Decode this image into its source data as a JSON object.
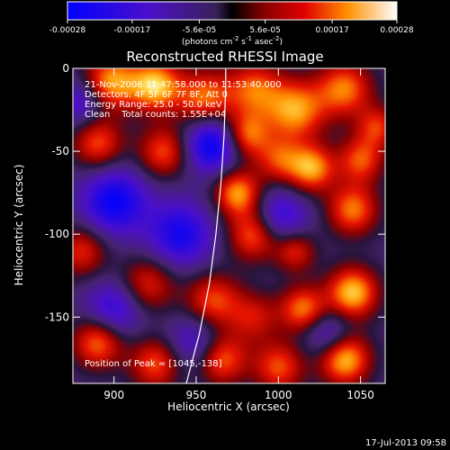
{
  "chart_data": {
    "type": "heatmap",
    "title": "Reconstructed RHESSI Image",
    "xlabel": "Heliocentric X (arcsec)",
    "ylabel": "Heliocentric Y (arcsec)",
    "xlim": [
      875,
      1065
    ],
    "ylim": [
      -190,
      0
    ],
    "x_ticks": [
      900,
      950,
      1000,
      1050
    ],
    "y_ticks": [
      0,
      -50,
      -100,
      -150
    ],
    "colorbar": {
      "ticks": [
        "-0.00028",
        "-0.00017",
        "-5.6e-05",
        "5.6e-05",
        "0.00017",
        "0.00028"
      ],
      "tick_values": [
        -0.00028,
        -0.00017,
        -5.6e-05,
        5.6e-05,
        0.00017,
        0.00028
      ],
      "range": [
        -0.00028,
        0.00028
      ],
      "unit_label_main": "(photons cm",
      "unit_sup1": "-2",
      "unit_label_mid": " s",
      "unit_sup2": "-1",
      "unit_label_end": " asec",
      "unit_sup3": "-2",
      "unit_label_close": ")"
    },
    "annotations": {
      "line1": "21-Nov-2006 11:47:58.000 to 11:53:40.000",
      "line2": "Detectors: 4F 5F 6F 7F 8F, Att 0",
      "line3": "Energy Range: 25.0 - 50.0 keV",
      "line4": "Clean    Total counts: 1.55E+04",
      "peak": "Position of Peak = [1045,-138]"
    },
    "limb_curve": [
      [
        944,
        -190
      ],
      [
        952,
        -160
      ],
      [
        958,
        -130
      ],
      [
        962,
        -100
      ],
      [
        965,
        -70
      ],
      [
        967,
        -40
      ],
      [
        968,
        -10
      ],
      [
        968,
        0
      ]
    ],
    "blobs": [
      [
        898,
        -8,
        0.9,
        12
      ],
      [
        925,
        -10,
        1.0,
        11
      ],
      [
        955,
        -18,
        0.8,
        12
      ],
      [
        985,
        -12,
        0.7,
        12
      ],
      [
        1010,
        -25,
        0.9,
        13
      ],
      [
        1040,
        -12,
        0.8,
        12
      ],
      [
        980,
        -40,
        0.8,
        10
      ],
      [
        1000,
        -55,
        0.6,
        10
      ],
      [
        1020,
        -60,
        0.9,
        10
      ],
      [
        1050,
        -55,
        0.7,
        10
      ],
      [
        890,
        -45,
        0.7,
        11
      ],
      [
        930,
        -50,
        0.7,
        11
      ],
      [
        975,
        -75,
        0.9,
        10
      ],
      [
        1045,
        -85,
        0.8,
        11
      ],
      [
        985,
        -100,
        0.8,
        11
      ],
      [
        1010,
        -110,
        0.6,
        9
      ],
      [
        900,
        -80,
        -0.8,
        14
      ],
      [
        940,
        -100,
        -0.7,
        14
      ],
      [
        1000,
        -90,
        -0.6,
        12
      ],
      [
        960,
        -45,
        -0.9,
        12
      ],
      [
        880,
        -110,
        0.6,
        11
      ],
      [
        920,
        -130,
        0.6,
        12
      ],
      [
        960,
        -140,
        0.7,
        12
      ],
      [
        985,
        -150,
        0.5,
        11
      ],
      [
        1045,
        -135,
        1.0,
        11
      ],
      [
        1015,
        -145,
        0.8,
        10
      ],
      [
        890,
        -165,
        0.8,
        11
      ],
      [
        925,
        -178,
        0.7,
        11
      ],
      [
        965,
        -175,
        0.8,
        11
      ],
      [
        1000,
        -180,
        0.7,
        11
      ],
      [
        1040,
        -175,
        1.0,
        11
      ],
      [
        900,
        -145,
        -0.6,
        12
      ],
      [
        950,
        -165,
        -0.5,
        12
      ],
      [
        1030,
        -160,
        -0.5,
        10
      ],
      [
        880,
        -20,
        -0.5,
        10
      ],
      [
        1060,
        -35,
        0.6,
        9
      ]
    ]
  },
  "footer": {
    "timestamp": "17-Jul-2013 09:58"
  }
}
